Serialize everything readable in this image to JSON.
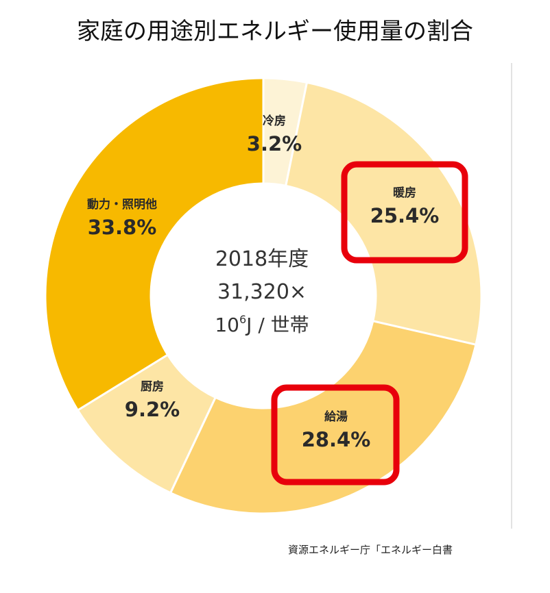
{
  "title": "家庭の用途別エネルギー使用量の割合",
  "source": "資源エネルギー庁「エネルギー白書",
  "center": {
    "line1": "2018年度",
    "line2": "31,320×",
    "line3_base": "10",
    "line3_sup": "6",
    "line3_rest": "J / 世帯"
  },
  "colors": {
    "cooling": "#fdf3d6",
    "heating": "#fde5a5",
    "hot_water": "#fcd26f",
    "kitchen": "#fde5a5",
    "power_lighting": "#f7b900",
    "highlight": "#e8000b"
  },
  "chart_data": {
    "type": "donut",
    "title": "家庭の用途別エネルギー使用量の割合",
    "unit": "%",
    "slices": [
      {
        "label": "冷房",
        "value": 3.2,
        "display": "3.2%",
        "color": "#fdf3d6",
        "highlighted": false
      },
      {
        "label": "暖房",
        "value": 25.4,
        "display": "25.4%",
        "color": "#fde5a5",
        "highlighted": true
      },
      {
        "label": "給湯",
        "value": 28.4,
        "display": "28.4%",
        "color": "#fcd26f",
        "highlighted": true
      },
      {
        "label": "厨房",
        "value": 9.2,
        "display": "9.2%",
        "color": "#fde5a5",
        "highlighted": false
      },
      {
        "label": "動力・照明他",
        "value": 33.8,
        "display": "33.8%",
        "color": "#f7b900",
        "highlighted": false
      }
    ]
  }
}
